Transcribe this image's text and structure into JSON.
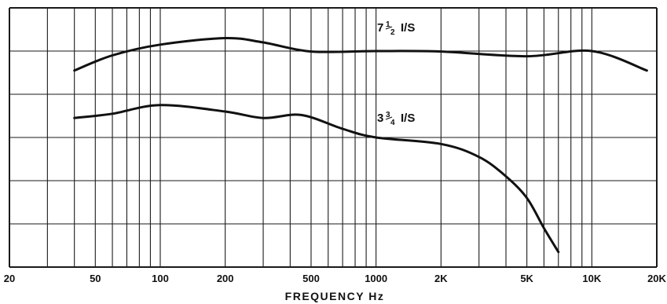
{
  "chart_data": {
    "type": "line",
    "xlabel": "FREQUENCY Hz",
    "x_scale": "log",
    "xlim": [
      20,
      20000
    ],
    "x_ticks": [
      {
        "value": 20,
        "label": "20"
      },
      {
        "value": 50,
        "label": "50"
      },
      {
        "value": 100,
        "label": "100"
      },
      {
        "value": 200,
        "label": "200"
      },
      {
        "value": 500,
        "label": "500"
      },
      {
        "value": 1000,
        "label": "1000"
      },
      {
        "value": 2000,
        "label": "2K"
      },
      {
        "value": 5000,
        "label": "5K"
      },
      {
        "value": 10000,
        "label": "10K"
      },
      {
        "value": 20000,
        "label": "20K"
      }
    ],
    "x_gridlines": [
      20,
      30,
      40,
      50,
      60,
      70,
      80,
      90,
      100,
      200,
      300,
      400,
      500,
      600,
      700,
      800,
      900,
      1000,
      2000,
      3000,
      4000,
      5000,
      6000,
      7000,
      8000,
      9000,
      10000,
      20000
    ],
    "ylim": [
      0,
      6
    ],
    "y_gridlines": [
      0,
      1,
      2,
      3,
      4,
      5,
      6
    ],
    "grid": true,
    "series": [
      {
        "name_parts": {
          "lead": "7",
          "num": "1",
          "den": "2",
          "tail": "I/S"
        },
        "x": [
          40,
          60,
          100,
          200,
          300,
          500,
          1000,
          2000,
          5000,
          10000,
          18000
        ],
        "y": [
          4.55,
          4.9,
          5.15,
          5.3,
          5.2,
          4.99,
          5.0,
          4.99,
          4.88,
          5.0,
          4.55
        ]
      },
      {
        "name_parts": {
          "lead": "3",
          "num": "3",
          "den": "4",
          "tail": "I/S"
        },
        "x": [
          40,
          60,
          100,
          200,
          300,
          450,
          700,
          1000,
          2000,
          3000,
          4000,
          5000,
          6000,
          7000
        ],
        "y": [
          3.45,
          3.55,
          3.75,
          3.6,
          3.45,
          3.52,
          3.2,
          3.0,
          2.85,
          2.55,
          2.1,
          1.6,
          0.9,
          0.35
        ]
      }
    ]
  }
}
